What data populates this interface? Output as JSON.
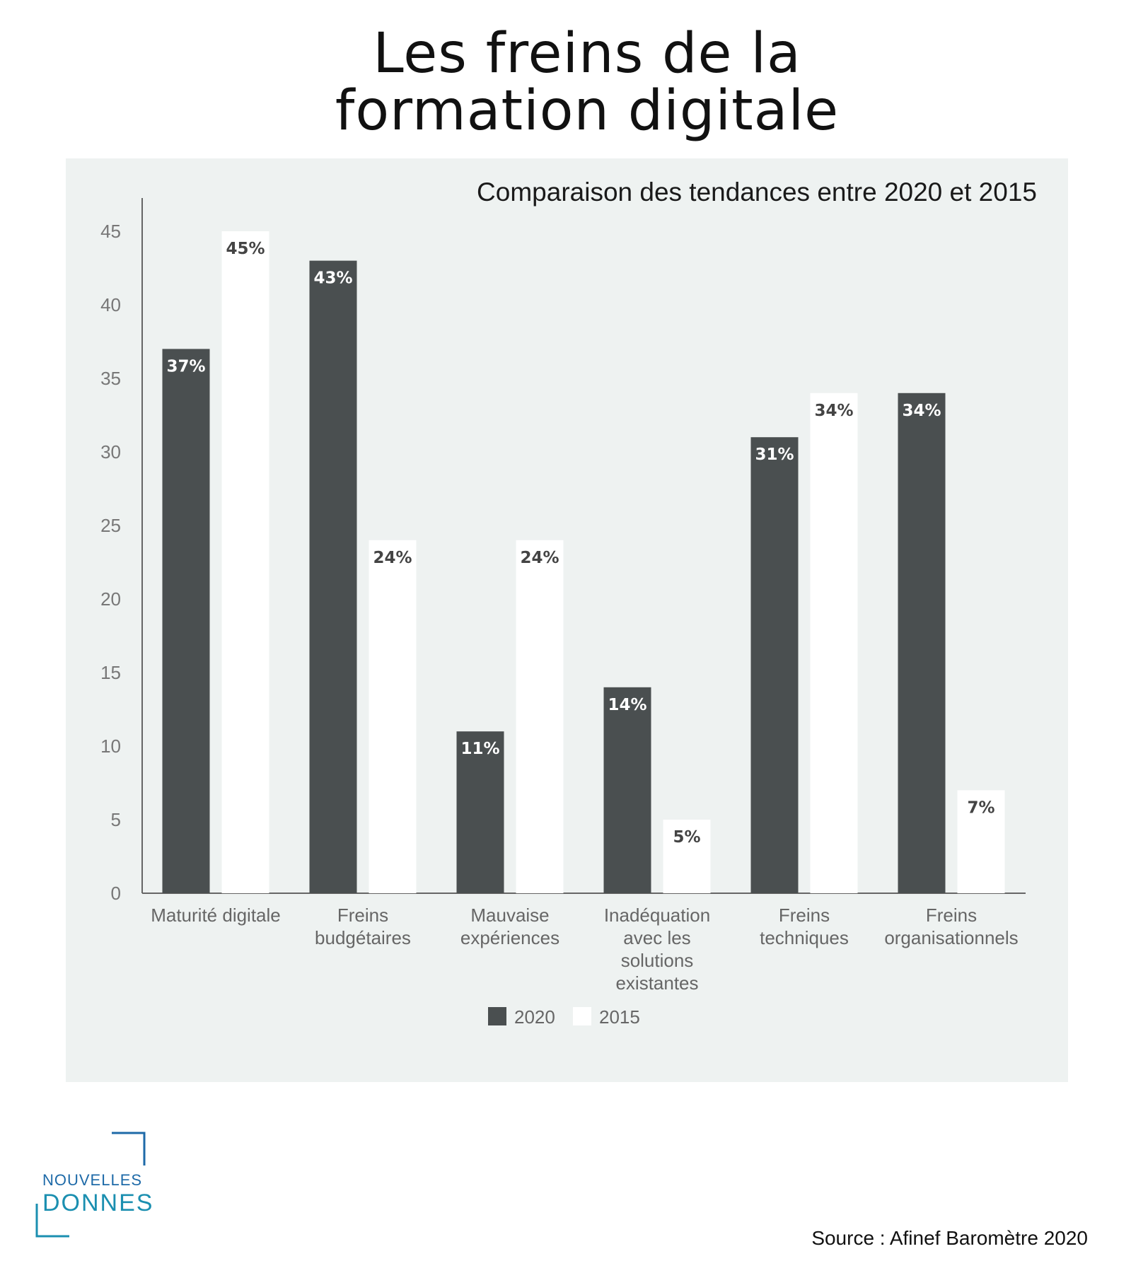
{
  "title": {
    "line1": "Les freins de la",
    "line2": "formation digitale"
  },
  "source": "Source : Afinef Baromètre 2020",
  "logo": {
    "line1": "NOUVELLES",
    "line2": "DONNES"
  },
  "colors": {
    "series_2020": "#4a4f50",
    "series_2015": "#ffffff",
    "panel_bg": "#eef2f1",
    "label_on_dark": "#ffffff",
    "label_on_light": "#444444"
  },
  "chart_data": {
    "type": "bar",
    "title": "Comparaison des tendances entre 2020 et 2015",
    "xlabel": "",
    "ylabel": "",
    "ylim": [
      0,
      45
    ],
    "yticks": [
      0,
      5,
      10,
      15,
      20,
      25,
      30,
      35,
      40,
      45
    ],
    "grid": false,
    "legend_position": "bottom-center",
    "categories": [
      [
        "Maturité digitale"
      ],
      [
        "Freins",
        "budgétaires"
      ],
      [
        "Mauvaise",
        "expériences"
      ],
      [
        "Inadéquation",
        "avec les",
        "solutions",
        "existantes"
      ],
      [
        "Freins",
        "techniques"
      ],
      [
        "Freins",
        "organisationnels"
      ]
    ],
    "series": [
      {
        "name": "2020",
        "values": [
          37,
          43,
          11,
          14,
          31,
          34
        ],
        "labels": [
          "37%",
          "43%",
          "11%",
          "14%",
          "31%",
          "34%"
        ]
      },
      {
        "name": "2015",
        "values": [
          45,
          24,
          24,
          5,
          34,
          7
        ],
        "labels": [
          "45%",
          "24%",
          "24%",
          "5%",
          "34%",
          "7%"
        ]
      }
    ]
  }
}
